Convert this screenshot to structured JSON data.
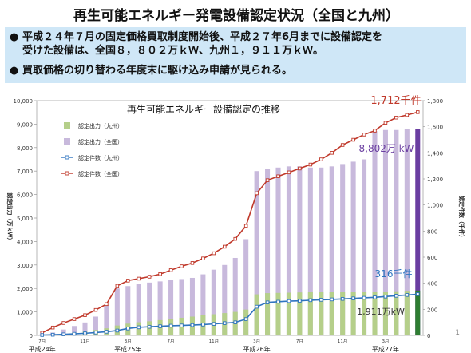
{
  "slide": {
    "title": "再生可能エネルギー発電設備認定状況（全国と九州）",
    "bullets": [
      {
        "marker": "●",
        "line1": "平成２４年７月の固定価格買取制度開始後、平成２７年6月までに設備認定を",
        "line2": "受けた設備は、全国８，８０２万ｋＷ、九州１，９１１万ｋＷ。"
      },
      {
        "marker": "●",
        "line1": "買取価格の切り替わる年度末に駆け込み申請が見られる。",
        "line2": ""
      }
    ],
    "page_number": "1"
  },
  "chart_data": {
    "type": "bar",
    "title": "再生可能エネルギー設備認定の推移",
    "ylabel_left": "認定出力（万ｋＷ）",
    "ylabel_right": "認定件数（千件）",
    "ylim_left": [
      0,
      10000
    ],
    "ylim_right": [
      0,
      1800
    ],
    "yticks_left": [
      "0",
      "1,000",
      "2,000",
      "3,000",
      "4,000",
      "5,000",
      "6,000",
      "7,000",
      "8,000",
      "9,000",
      "10,000"
    ],
    "yticks_right": [
      "0",
      "200",
      "400",
      "600",
      "800",
      "1,000",
      "1,200",
      "1,400",
      "1,600",
      "1,800"
    ],
    "x_month_labels": [
      "7月",
      "11月",
      "3月",
      "7月",
      "11月",
      "3月",
      "7月",
      "11月",
      "3月"
    ],
    "x_month_index": [
      0,
      4,
      8,
      12,
      16,
      20,
      24,
      28,
      32
    ],
    "x_year_labels": [
      "平成24年",
      "平成25年",
      "平成26年",
      "平成27年"
    ],
    "x_year_index": [
      0,
      8,
      20,
      32
    ],
    "legend": [
      {
        "name": "認定出力（九州）",
        "color": "#b5cf8a",
        "kind": "bar"
      },
      {
        "name": "認定出力（全国）",
        "color": "#c8b9dc",
        "kind": "bar"
      },
      {
        "name": "認定件数（九州）",
        "color": "#2f74c0",
        "kind": "line"
      },
      {
        "name": "認定件数（全国）",
        "color": "#c0392b",
        "kind": "line"
      }
    ],
    "series": [
      {
        "name": "認定出力（九州）",
        "values": [
          10,
          30,
          70,
          110,
          160,
          230,
          300,
          420,
          500,
          560,
          600,
          650,
          700,
          750,
          800,
          850,
          900,
          950,
          1000,
          1100,
          1750,
          1800,
          1810,
          1820,
          1830,
          1840,
          1840,
          1850,
          1850,
          1860,
          1860,
          1870,
          1870,
          1880,
          1900,
          1911
        ]
      },
      {
        "name": "認定出力（全国）",
        "values": [
          50,
          120,
          250,
          400,
          550,
          800,
          1300,
          2000,
          2100,
          2200,
          2250,
          2300,
          2350,
          2400,
          2450,
          2600,
          2800,
          3000,
          3300,
          4100,
          7000,
          7100,
          7150,
          7200,
          7200,
          7150,
          7150,
          7200,
          7300,
          7400,
          7500,
          8700,
          8750,
          8750,
          8780,
          8802
        ]
      },
      {
        "name": "認定件数（九州）",
        "values": [
          3,
          5,
          8,
          12,
          16,
          22,
          28,
          37,
          53,
          62,
          66,
          70,
          74,
          76,
          79,
          83,
          88,
          94,
          100,
          125,
          220,
          253,
          258,
          263,
          265,
          270,
          273,
          276,
          280,
          284,
          288,
          292,
          298,
          304,
          310,
          316
        ]
      },
      {
        "name": "認定件数（全国）",
        "values": [
          20,
          60,
          95,
          125,
          155,
          195,
          240,
          380,
          420,
          435,
          450,
          470,
          500,
          530,
          555,
          590,
          630,
          680,
          740,
          840,
          1090,
          1190,
          1220,
          1250,
          1280,
          1310,
          1350,
          1400,
          1460,
          1500,
          1540,
          1570,
          1630,
          1670,
          1690,
          1712
        ]
      }
    ],
    "annotations": [
      {
        "text": "1,712千件",
        "color": "#c0392b"
      },
      {
        "text": "8,802万 kW",
        "color": "#6a3ea1"
      },
      {
        "text": "316千件",
        "color": "#2f74c0"
      },
      {
        "text": "1,911万kW",
        "color": "#333333"
      }
    ],
    "highlight_last_bar_colors": {
      "nation": "#6a3ea1",
      "kyushu": "#2e7d32"
    }
  }
}
